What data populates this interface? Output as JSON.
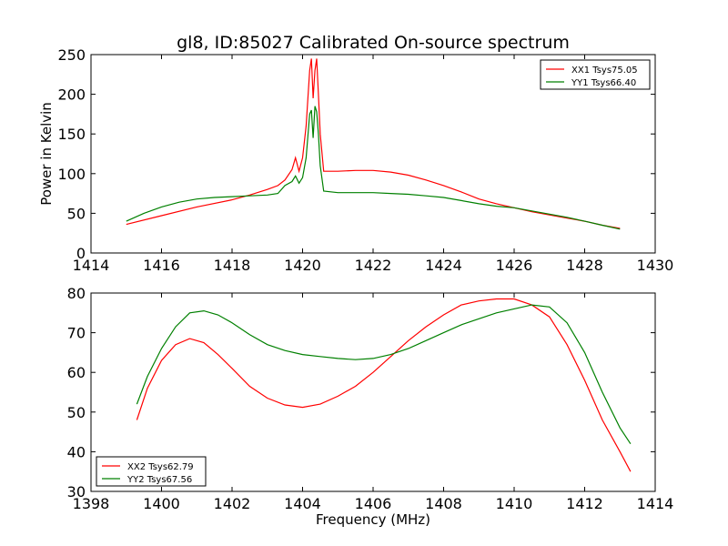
{
  "chart_data": [
    {
      "type": "line",
      "title": "gl8, ID:85027 Calibrated On-source spectrum",
      "xlabel": "",
      "ylabel": "Power in Kelvin",
      "xlim": [
        1414,
        1430
      ],
      "ylim": [
        0,
        250
      ],
      "xticks": [
        1414,
        1416,
        1418,
        1420,
        1422,
        1424,
        1426,
        1428,
        1430
      ],
      "yticks": [
        0,
        50,
        100,
        150,
        200,
        250
      ],
      "legend_position": "top-right",
      "series": [
        {
          "name": "XX1 Tsys75.05",
          "color": "#ff0000",
          "x": [
            1415.0,
            1416.0,
            1417.0,
            1418.0,
            1418.5,
            1419.0,
            1419.3,
            1419.5,
            1419.7,
            1419.8,
            1419.9,
            1420.0,
            1420.1,
            1420.2,
            1420.25,
            1420.3,
            1420.35,
            1420.4,
            1420.45,
            1420.5,
            1420.6,
            1421.0,
            1421.5,
            1422.0,
            1422.5,
            1423.0,
            1423.5,
            1424.0,
            1424.5,
            1425.0,
            1425.5,
            1426.0,
            1426.5,
            1427.0,
            1427.5,
            1428.0,
            1428.5,
            1429.0
          ],
          "values": [
            36,
            47,
            58,
            67,
            73,
            80,
            85,
            92,
            105,
            120,
            103,
            120,
            160,
            230,
            245,
            195,
            230,
            245,
            200,
            150,
            103,
            103,
            104,
            104,
            102,
            98,
            92,
            85,
            77,
            68,
            62,
            57,
            52,
            48,
            44,
            40,
            35,
            31
          ]
        },
        {
          "name": "YY1 Tsys66.40",
          "color": "#008000",
          "x": [
            1415.0,
            1415.5,
            1416.0,
            1416.5,
            1417.0,
            1417.5,
            1418.0,
            1418.5,
            1419.0,
            1419.3,
            1419.5,
            1419.7,
            1419.8,
            1419.9,
            1420.0,
            1420.1,
            1420.2,
            1420.25,
            1420.3,
            1420.35,
            1420.4,
            1420.45,
            1420.5,
            1420.6,
            1421.0,
            1421.5,
            1422.0,
            1422.5,
            1423.0,
            1423.5,
            1424.0,
            1424.5,
            1425.0,
            1425.5,
            1426.0,
            1426.5,
            1427.0,
            1427.5,
            1428.0,
            1428.5,
            1429.0
          ],
          "values": [
            40,
            50,
            58,
            64,
            68,
            70,
            71,
            72,
            73,
            75,
            85,
            90,
            97,
            88,
            95,
            120,
            175,
            180,
            145,
            185,
            178,
            150,
            110,
            78,
            76,
            76,
            76,
            75,
            74,
            72,
            70,
            66,
            62,
            59,
            57,
            53,
            49,
            45,
            40,
            35,
            30
          ]
        }
      ]
    },
    {
      "type": "line",
      "title": "",
      "xlabel": "Frequency (MHz)",
      "ylabel": "",
      "xlim": [
        1398,
        1414
      ],
      "ylim": [
        30,
        80
      ],
      "xticks": [
        1398,
        1400,
        1402,
        1404,
        1406,
        1408,
        1410,
        1412,
        1414
      ],
      "yticks": [
        30,
        40,
        50,
        60,
        70,
        80
      ],
      "legend_position": "bottom-left",
      "series": [
        {
          "name": "XX2 Tsys62.79",
          "color": "#ff0000",
          "x": [
            1399.3,
            1399.6,
            1400.0,
            1400.4,
            1400.8,
            1401.2,
            1401.6,
            1402.0,
            1402.5,
            1403.0,
            1403.5,
            1404.0,
            1404.5,
            1405.0,
            1405.5,
            1406.0,
            1406.5,
            1407.0,
            1407.5,
            1408.0,
            1408.5,
            1409.0,
            1409.5,
            1410.0,
            1410.5,
            1411.0,
            1411.5,
            1412.0,
            1412.5,
            1413.0,
            1413.3
          ],
          "values": [
            48,
            56,
            63,
            67,
            68.5,
            67.5,
            64.5,
            61,
            56.5,
            53.5,
            51.8,
            51.2,
            52,
            54,
            56.5,
            60,
            64,
            68,
            71.5,
            74.5,
            77,
            78,
            78.5,
            78.5,
            77,
            74,
            67,
            58,
            48,
            40,
            35
          ]
        },
        {
          "name": "YY2 Tsys67.56",
          "color": "#008000",
          "x": [
            1399.3,
            1399.6,
            1400.0,
            1400.4,
            1400.8,
            1401.2,
            1401.6,
            1402.0,
            1402.5,
            1403.0,
            1403.5,
            1404.0,
            1404.5,
            1405.0,
            1405.5,
            1406.0,
            1406.5,
            1407.0,
            1407.5,
            1408.0,
            1408.5,
            1409.0,
            1409.5,
            1410.0,
            1410.5,
            1411.0,
            1411.5,
            1412.0,
            1412.5,
            1413.0,
            1413.3
          ],
          "values": [
            52,
            59,
            66,
            71.5,
            75,
            75.5,
            74.5,
            72.5,
            69.5,
            67,
            65.5,
            64.5,
            64,
            63.5,
            63.2,
            63.5,
            64.5,
            66,
            68,
            70,
            72,
            73.5,
            75,
            76,
            77,
            76.5,
            72.5,
            65,
            55,
            46,
            42
          ]
        }
      ]
    }
  ]
}
